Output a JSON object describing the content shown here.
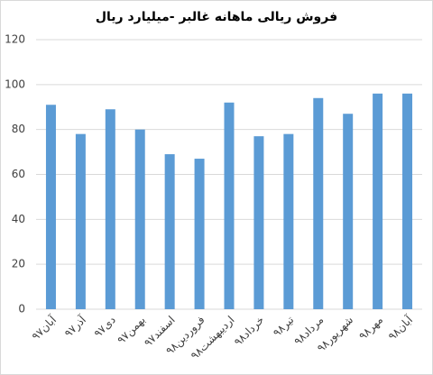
{
  "chart_data": {
    "type": "bar",
    "title": "فروش ریالی ماهانه غالبر -میلیارد ریال",
    "categories": [
      "آبان۹۷",
      "آذر۹۷",
      "دی۹۷",
      "بهمن۹۷",
      "اسفند۹۷",
      "فروردین۹۸",
      "اردیبهشت۹۸",
      "خرداد۹۸",
      "تیر۹۸",
      "مرداد۹۸",
      "شهریور۹۸",
      "مهر۹۸",
      "آبان۹۸"
    ],
    "values": [
      91,
      78,
      89,
      80,
      69,
      67,
      92,
      77,
      78,
      94,
      87,
      96,
      96
    ],
    "color": "#5b9bd5",
    "ylim": [
      0,
      120
    ],
    "yticks": [
      0,
      20,
      40,
      60,
      80,
      100,
      120
    ],
    "grid": true
  }
}
